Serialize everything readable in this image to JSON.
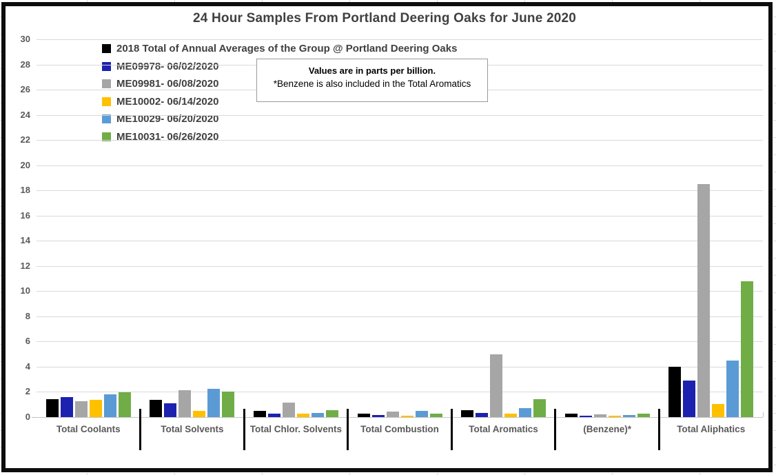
{
  "chart_data": {
    "type": "bar",
    "title": "24 Hour Samples From Portland Deering Oaks for June 2020",
    "values_unit": "parts per billion",
    "categories": [
      "Total Coolants",
      "Total Solvents",
      "Total Chlor. Solvents",
      "Total Combustion",
      "Total Aromatics",
      "(Benzene)*",
      "Total Aliphatics"
    ],
    "series": [
      {
        "name": "2018 Total of Annual Averages of the Group @ Portland Deering Oaks",
        "color": "#000000",
        "values": [
          1.45,
          1.35,
          0.5,
          0.3,
          0.55,
          0.3,
          4.0
        ]
      },
      {
        "name": "ME09978- 06/02/2020",
        "color": "#1c21b0",
        "values": [
          1.6,
          1.1,
          0.25,
          0.15,
          0.35,
          0.1,
          2.9
        ]
      },
      {
        "name": "ME09981- 06/08/2020",
        "color": "#a6a6a6",
        "values": [
          1.25,
          2.15,
          1.15,
          0.45,
          5.0,
          0.2,
          18.5
        ]
      },
      {
        "name": "ME10002- 06/14/2020",
        "color": "#ffc000",
        "values": [
          1.35,
          0.5,
          0.3,
          0.1,
          0.3,
          0.1,
          1.05
        ]
      },
      {
        "name": "ME10029- 06/20/2020",
        "color": "#5b9bd5",
        "values": [
          1.8,
          2.25,
          0.35,
          0.5,
          0.7,
          0.15,
          4.5
        ]
      },
      {
        "name": "ME10031- 06/26/2020",
        "color": "#70ad47",
        "values": [
          1.95,
          2.0,
          0.55,
          0.3,
          1.45,
          0.28,
          10.8
        ]
      }
    ],
    "ylim": [
      0,
      30
    ],
    "ytick_step": 2,
    "yticks": [
      0,
      2,
      4,
      6,
      8,
      10,
      12,
      14,
      16,
      18,
      20,
      22,
      24,
      26,
      28,
      30
    ],
    "grid": true,
    "legend_position": "top-left"
  },
  "note": {
    "line1": "Values are in parts per billion.",
    "line2": "*Benzene is also included in the Total Aromatics"
  },
  "style_colors": {
    "gridline": "#d9d9d9",
    "axis_text": "#595959",
    "title_text": "#404040",
    "frame": "#0d0d0d"
  }
}
